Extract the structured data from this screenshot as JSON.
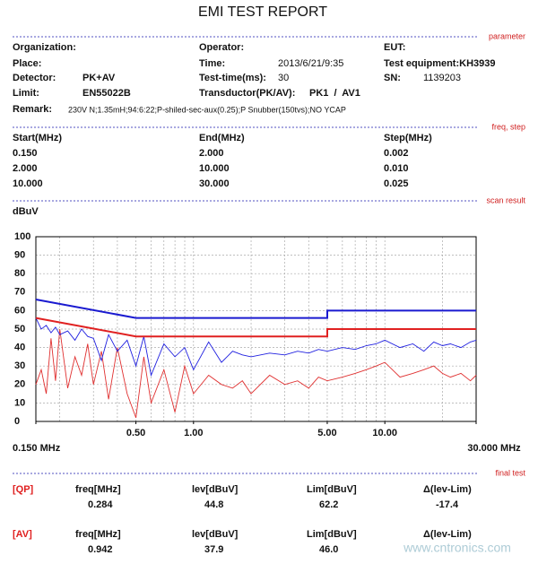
{
  "title": "EMI TEST REPORT",
  "sections": {
    "parameter": "parameter",
    "freq_step": "freq, step",
    "scan_result": "scan result",
    "final_test": "final test"
  },
  "parameter": {
    "organization": {
      "label": "Organization:"
    },
    "operator": {
      "label": "Operator:"
    },
    "eut": {
      "label": "EUT:"
    },
    "place": {
      "label": "Place:"
    },
    "time": {
      "label": "Time:",
      "value": "2013/6/21/9:35"
    },
    "test_equipment": {
      "label": "Test equipment:KH3939"
    },
    "detector": {
      "label": "Detector:",
      "value": "PK+AV"
    },
    "test_time": {
      "label": "Test-time(ms):",
      "value": "30"
    },
    "sn": {
      "label": "SN:",
      "value": "1139203"
    },
    "limit": {
      "label": "Limit:",
      "value": "EN55022B"
    },
    "transductor": {
      "label": "Transductor(PK/AV):",
      "value": "PK1  /  AV1"
    },
    "remark": {
      "label": "Remark:",
      "value": "230V N;1.35mH;94:6:22;P-shiled-sec-aux(0.25);P Snubber(150tvs);NO YCAP"
    }
  },
  "freq_table": {
    "header": [
      "Start(MHz)",
      "End(MHz)",
      "Step(MHz)"
    ],
    "rows": [
      [
        "0.150",
        "2.000",
        "0.002"
      ],
      [
        "2.000",
        "10.000",
        "0.010"
      ],
      [
        "10.000",
        "30.000",
        "0.025"
      ]
    ]
  },
  "chart_data": {
    "type": "line",
    "y_label": "dBuV",
    "x_scale": "log",
    "grid": true,
    "xlim": [
      0.15,
      30
    ],
    "ylim": [
      0,
      100
    ],
    "yticks": [
      0,
      10,
      20,
      30,
      40,
      50,
      60,
      70,
      80,
      90,
      100
    ],
    "xticks": [
      {
        "value": 0.15,
        "label": "0.150 MHz"
      },
      {
        "value": 0.5,
        "label": "0.50"
      },
      {
        "value": 1,
        "label": "1.00"
      },
      {
        "value": 5,
        "label": "5.00"
      },
      {
        "value": 10,
        "label": "10.00"
      },
      {
        "value": 30,
        "label": "30.000 MHz"
      }
    ],
    "xgrid": [
      0.2,
      0.3,
      0.4,
      0.5,
      0.6,
      0.7,
      0.8,
      0.9,
      1,
      2,
      3,
      4,
      5,
      6,
      7,
      8,
      9,
      10,
      20
    ],
    "series": [
      {
        "x": [
          0.15,
          0.16,
          0.17,
          0.18,
          0.19,
          0.2,
          0.22,
          0.24,
          0.26,
          0.28,
          0.3,
          0.33,
          0.36,
          0.4,
          0.45,
          0.5,
          0.55,
          0.6,
          0.7,
          0.8,
          0.9,
          1.0,
          1.2,
          1.4,
          1.6,
          1.8,
          2.0,
          2.5,
          3.0,
          3.5,
          4.0,
          4.5,
          5.0,
          6,
          7,
          8,
          9,
          10,
          12,
          14,
          16,
          18,
          20,
          22,
          25,
          28,
          30
        ],
        "values": [
          20,
          28,
          15,
          45,
          22,
          50,
          18,
          35,
          25,
          42,
          20,
          38,
          12,
          40,
          15,
          2,
          35,
          10,
          28,
          5,
          30,
          15,
          25,
          20,
          18,
          22,
          15,
          25,
          20,
          22,
          18,
          24,
          22,
          24,
          26,
          28,
          30,
          32,
          24,
          26,
          28,
          30,
          26,
          24,
          26,
          22,
          25
        ],
        "color": "#e03030",
        "width": 0.9
      },
      {
        "x": [
          0.15,
          0.16,
          0.17,
          0.18,
          0.19,
          0.2,
          0.22,
          0.24,
          0.26,
          0.28,
          0.3,
          0.33,
          0.36,
          0.4,
          0.45,
          0.5,
          0.55,
          0.6,
          0.7,
          0.8,
          0.9,
          1.0,
          1.2,
          1.4,
          1.6,
          1.8,
          2.0,
          2.5,
          3.0,
          3.5,
          4.0,
          4.5,
          5.0,
          6,
          7,
          8,
          9,
          10,
          12,
          14,
          16,
          18,
          20,
          22,
          25,
          28,
          30
        ],
        "values": [
          56,
          50,
          52,
          48,
          51,
          47,
          49,
          44,
          50,
          46,
          45,
          33,
          47,
          38,
          44,
          30,
          46,
          25,
          42,
          35,
          40,
          28,
          43,
          32,
          38,
          36,
          35,
          37,
          36,
          38,
          37,
          39,
          38,
          40,
          39,
          41,
          42,
          44,
          40,
          42,
          38,
          43,
          41,
          42,
          40,
          43,
          44
        ],
        "color": "#2020e0",
        "width": 0.9
      },
      {
        "x": [
          0.15,
          0.5,
          5,
          5,
          30
        ],
        "values": [
          56,
          46,
          46,
          50,
          50
        ],
        "color": "#e02020",
        "width": 2
      },
      {
        "x": [
          0.15,
          0.5,
          5,
          5,
          30
        ],
        "values": [
          66,
          56,
          56,
          60,
          60
        ],
        "color": "#1a1ad0",
        "width": 2
      }
    ]
  },
  "final_test": {
    "rows": [
      {
        "tag": "[QP]",
        "freq_label": "freq[MHz]",
        "freq": "0.284",
        "lev_label": "lev[dBuV]",
        "lev": "44.8",
        "lim_label": "Lim[dBuV]",
        "lim": "62.2",
        "delta_label": "Δ(lev-Lim)",
        "delta": "-17.4"
      },
      {
        "tag": "[AV]",
        "freq_label": "freq[MHz]",
        "freq": "0.942",
        "lev_label": "lev[dBuV]",
        "lev": "37.9",
        "lim_label": "Lim[dBuV]",
        "lim": "46.0",
        "delta_label": "Δ(lev-Lim)"
      }
    ]
  },
  "watermark": "www.cntronics.com"
}
